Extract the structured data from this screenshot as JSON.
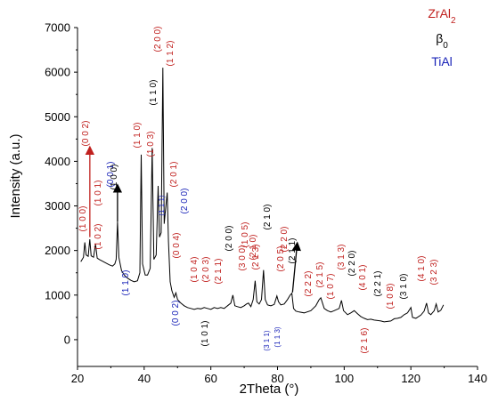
{
  "chart_data": {
    "type": "line",
    "xlabel": "2Theta (°)",
    "ylabel": "Intensity (a.u.)",
    "xlim": [
      20,
      140
    ],
    "ylim": [
      -600,
      7000
    ],
    "x_ticks": [
      20,
      40,
      60,
      80,
      100,
      120,
      140
    ],
    "y_ticks": [
      0,
      1000,
      2000,
      3000,
      4000,
      5000,
      6000,
      7000
    ],
    "grid": false,
    "legend": {
      "placement": "top-right",
      "entries": [
        {
          "name": "ZrAl",
          "sub": "2",
          "color": "#c0201e"
        },
        {
          "name": "β",
          "sub": "0",
          "color": "#000000"
        },
        {
          "name": "TiAl",
          "sub": "",
          "color": "#1a24b8"
        }
      ]
    },
    "line_color": "#000000",
    "series": [
      {
        "points": [
          [
            21,
            1750
          ],
          [
            21.8,
            1850
          ],
          [
            22.2,
            2180
          ],
          [
            22.6,
            1900
          ],
          [
            23.2,
            1870
          ],
          [
            23.7,
            2250
          ],
          [
            24.1,
            1880
          ],
          [
            24.8,
            1850
          ],
          [
            25.4,
            2150
          ],
          [
            25.9,
            1830
          ],
          [
            26.5,
            1800
          ],
          [
            27.5,
            1760
          ],
          [
            28.5,
            1720
          ],
          [
            29.5,
            1680
          ],
          [
            30.5,
            1650
          ],
          [
            31.2,
            1700
          ],
          [
            31.6,
            1800
          ],
          [
            32.0,
            2650
          ],
          [
            32.4,
            1850
          ],
          [
            33.2,
            1550
          ],
          [
            34,
            1450
          ],
          [
            35,
            1380
          ],
          [
            36,
            1330
          ],
          [
            37,
            1300
          ],
          [
            38,
            1320
          ],
          [
            38.7,
            1500
          ],
          [
            39.1,
            4150
          ],
          [
            39.5,
            1700
          ],
          [
            40.3,
            1450
          ],
          [
            41,
            1450
          ],
          [
            41.8,
            1600
          ],
          [
            42.4,
            4300
          ],
          [
            42.9,
            1800
          ],
          [
            43.6,
            1900
          ],
          [
            44.2,
            3450
          ],
          [
            44.6,
            2300
          ],
          [
            45.1,
            2400
          ],
          [
            45.6,
            6100
          ],
          [
            46.0,
            2600
          ],
          [
            46.5,
            3000
          ],
          [
            46.9,
            3300
          ],
          [
            47.3,
            2200
          ],
          [
            47.8,
            1300
          ],
          [
            48.3,
            1100
          ],
          [
            49,
            950
          ],
          [
            49.5,
            1050
          ],
          [
            50,
            900
          ],
          [
            51,
            820
          ],
          [
            52,
            760
          ],
          [
            53,
            720
          ],
          [
            54,
            700
          ],
          [
            55,
            680
          ],
          [
            56,
            700
          ],
          [
            57,
            690
          ],
          [
            58,
            720
          ],
          [
            59,
            700
          ],
          [
            60,
            680
          ],
          [
            61,
            720
          ],
          [
            62,
            700
          ],
          [
            63,
            720
          ],
          [
            64,
            700
          ],
          [
            65,
            760
          ],
          [
            66,
            820
          ],
          [
            66.6,
            1000
          ],
          [
            67.2,
            760
          ],
          [
            68,
            740
          ],
          [
            69,
            720
          ],
          [
            70,
            760
          ],
          [
            70.7,
            800
          ],
          [
            71.3,
            820
          ],
          [
            72,
            740
          ],
          [
            72.7,
            900
          ],
          [
            73.3,
            1320
          ],
          [
            73.8,
            850
          ],
          [
            74.5,
            800
          ],
          [
            75.2,
            900
          ],
          [
            75.8,
            1560
          ],
          [
            76.3,
            900
          ],
          [
            77,
            780
          ],
          [
            78,
            760
          ],
          [
            79,
            790
          ],
          [
            79.8,
            980
          ],
          [
            80.3,
            850
          ],
          [
            81,
            780
          ],
          [
            82,
            800
          ],
          [
            83,
            900
          ],
          [
            83.8,
            1000
          ],
          [
            84.3,
            1040
          ],
          [
            84.8,
            700
          ],
          [
            85.5,
            640
          ],
          [
            86.5,
            620
          ],
          [
            88,
            600
          ],
          [
            90,
            650
          ],
          [
            91.5,
            760
          ],
          [
            92.5,
            900
          ],
          [
            93,
            940
          ],
          [
            94,
            700
          ],
          [
            95,
            650
          ],
          [
            96,
            620
          ],
          [
            97,
            650
          ],
          [
            98.5,
            700
          ],
          [
            99.2,
            880
          ],
          [
            99.8,
            650
          ],
          [
            101,
            560
          ],
          [
            102,
            600
          ],
          [
            103,
            650
          ],
          [
            104,
            580
          ],
          [
            105,
            520
          ],
          [
            106,
            480
          ],
          [
            107,
            450
          ],
          [
            108,
            460
          ],
          [
            109,
            440
          ],
          [
            110,
            430
          ],
          [
            111,
            420
          ],
          [
            112,
            400
          ],
          [
            113,
            410
          ],
          [
            114,
            420
          ],
          [
            115,
            470
          ],
          [
            116,
            480
          ],
          [
            117,
            500
          ],
          [
            118,
            560
          ],
          [
            119,
            600
          ],
          [
            120,
            720
          ],
          [
            120.5,
            500
          ],
          [
            121.5,
            480
          ],
          [
            123,
            550
          ],
          [
            124,
            640
          ],
          [
            124.7,
            820
          ],
          [
            125.3,
            600
          ],
          [
            126,
            560
          ],
          [
            127,
            650
          ],
          [
            127.6,
            800
          ],
          [
            128.2,
            620
          ],
          [
            129,
            660
          ],
          [
            129.8,
            780
          ]
        ]
      }
    ],
    "annotations": [
      {
        "text": "(1 0 0)",
        "color": "#c0201e"
      },
      {
        "text": "(0 0 2)",
        "color": "#c0201e"
      },
      {
        "text": "(1 0 1)",
        "color": "#c0201e"
      },
      {
        "text": "(0 0 1)",
        "color": "#1a24b8"
      },
      {
        "text": "(1 0 0)",
        "color": "#000000"
      },
      {
        "text": "(1 0 2)",
        "color": "#c0201e"
      },
      {
        "text": "(1 1 0)",
        "color": "#1a24b8"
      },
      {
        "text": "(1 1 0)",
        "color": "#c0201e"
      },
      {
        "text": "(1 0 3)",
        "color": "#c0201e"
      },
      {
        "text": "(1 1 1)",
        "color": "#1a24b8"
      },
      {
        "text": "(1 1 0)",
        "color": "#000000"
      },
      {
        "text": "(2 0 0)",
        "color": "#c0201e"
      },
      {
        "text": "(1 1 2)",
        "color": "#c0201e"
      },
      {
        "text": "(2 0 1)",
        "color": "#c0201e"
      },
      {
        "text": "(0 0 4)",
        "color": "#c0201e"
      },
      {
        "text": "(2 0 0)",
        "color": "#1a24b8"
      },
      {
        "text": "(0 0 2)",
        "color": "#1a24b8"
      },
      {
        "text": "(1 0 4)",
        "color": "#c0201e"
      },
      {
        "text": "(1 0 1)",
        "color": "#000000"
      },
      {
        "text": "(2 0 3)",
        "color": "#c0201e"
      },
      {
        "text": "(2 1 1)",
        "color": "#c0201e"
      },
      {
        "text": "(2 0 0)",
        "color": "#000000"
      },
      {
        "text": "(1 0 5)",
        "color": "#c0201e"
      },
      {
        "text": "(3 0 0)",
        "color": "#c0201e"
      },
      {
        "text": "(2 1 3)",
        "color": "#c0201e"
      },
      {
        "text": "(2 1 0)",
        "color": "#c0201e"
      },
      {
        "text": "(2 1 0)",
        "color": "#000000"
      },
      {
        "text": "(3 1 1)",
        "color": "#1a24b8"
      },
      {
        "text": "(1 1 3)",
        "color": "#1a24b8"
      },
      {
        "text": "(2 0 5)",
        "color": "#c0201e"
      },
      {
        "text": "(2 2 0)",
        "color": "#c0201e"
      },
      {
        "text": "(2 1 1)",
        "color": "#000000"
      },
      {
        "text": "(2 2 2)",
        "color": "#c0201e"
      },
      {
        "text": "(2 1 5)",
        "color": "#c0201e"
      },
      {
        "text": "(1 0 7)",
        "color": "#c0201e"
      },
      {
        "text": "(3 1 3)",
        "color": "#c0201e"
      },
      {
        "text": "(2 2 0)",
        "color": "#000000"
      },
      {
        "text": "(4 0 1)",
        "color": "#c0201e"
      },
      {
        "text": "(2 1 6)",
        "color": "#c0201e"
      },
      {
        "text": "(2 2 1)",
        "color": "#000000"
      },
      {
        "text": "(1 0 8)",
        "color": "#c0201e"
      },
      {
        "text": "(3 1 0)",
        "color": "#000000"
      },
      {
        "text": "(4 1 0)",
        "color": "#c0201e"
      },
      {
        "text": "(3 2 3)",
        "color": "#c0201e"
      }
    ],
    "arrows": [
      {
        "x": 23.7,
        "y_from": 2300,
        "y_to": 4250,
        "color": "#c0201e"
      },
      {
        "x": 32.0,
        "y_from": 2650,
        "y_to": 3400,
        "color": "#000000"
      },
      {
        "x": 84.5,
        "y_from": 1060,
        "y_to": 2100,
        "color": "#000000"
      }
    ]
  }
}
